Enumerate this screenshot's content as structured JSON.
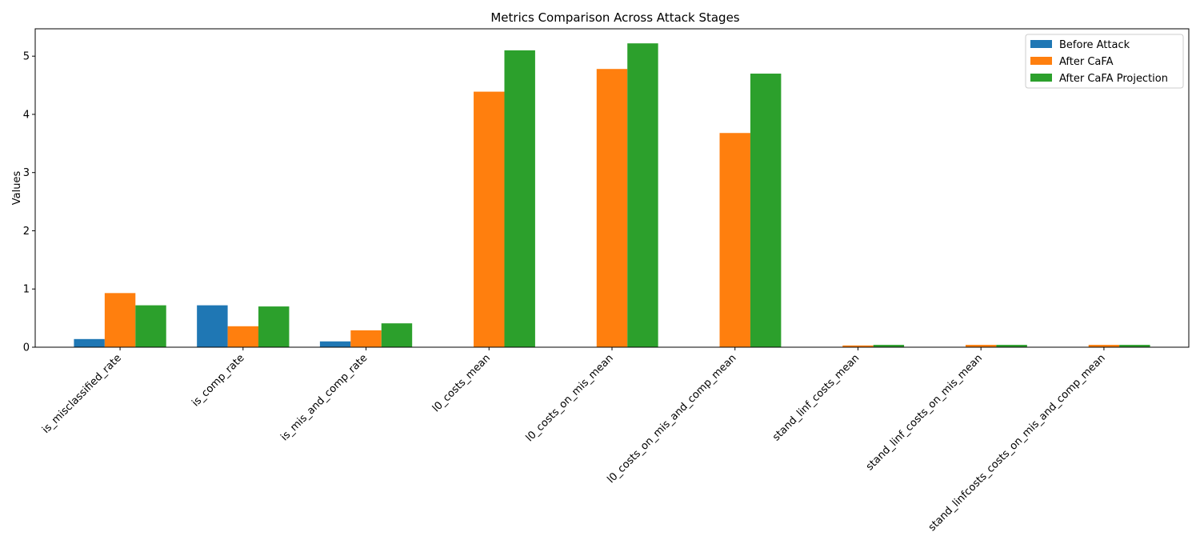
{
  "chart_data": {
    "type": "bar",
    "title": "Metrics Comparison Across Attack Stages",
    "xlabel": "",
    "ylabel": "Values",
    "ylim": [
      0,
      5.47
    ],
    "yticks": [
      "0",
      "1",
      "2",
      "3",
      "4",
      "5"
    ],
    "grid": false,
    "legend_position": "top-right",
    "categories": [
      "is_misclassified_rate",
      "is_comp_rate",
      "is_mis_and_comp_rate",
      "l0_costs_mean",
      "l0_costs_on_mis_mean",
      "l0_costs_on_mis_and_comp_mean",
      "stand_linf_costs_mean",
      "stand_linf_costs_on_mis_mean",
      "stand_linfcosts_costs_on_mis_and_comp_mean"
    ],
    "series": [
      {
        "name": "Before Attack",
        "color": "#1f77b4",
        "values": [
          0.14,
          0.72,
          0.1,
          0,
          0,
          0,
          0,
          0,
          0
        ]
      },
      {
        "name": "After CaFA",
        "color": "#ff7f0e",
        "values": [
          0.93,
          0.36,
          0.29,
          4.39,
          4.78,
          3.68,
          0.03,
          0.04,
          0.04
        ]
      },
      {
        "name": "After CaFA Projection",
        "color": "#2ca02c",
        "values": [
          0.72,
          0.7,
          0.41,
          5.1,
          5.22,
          4.7,
          0.04,
          0.04,
          0.04
        ]
      }
    ]
  }
}
